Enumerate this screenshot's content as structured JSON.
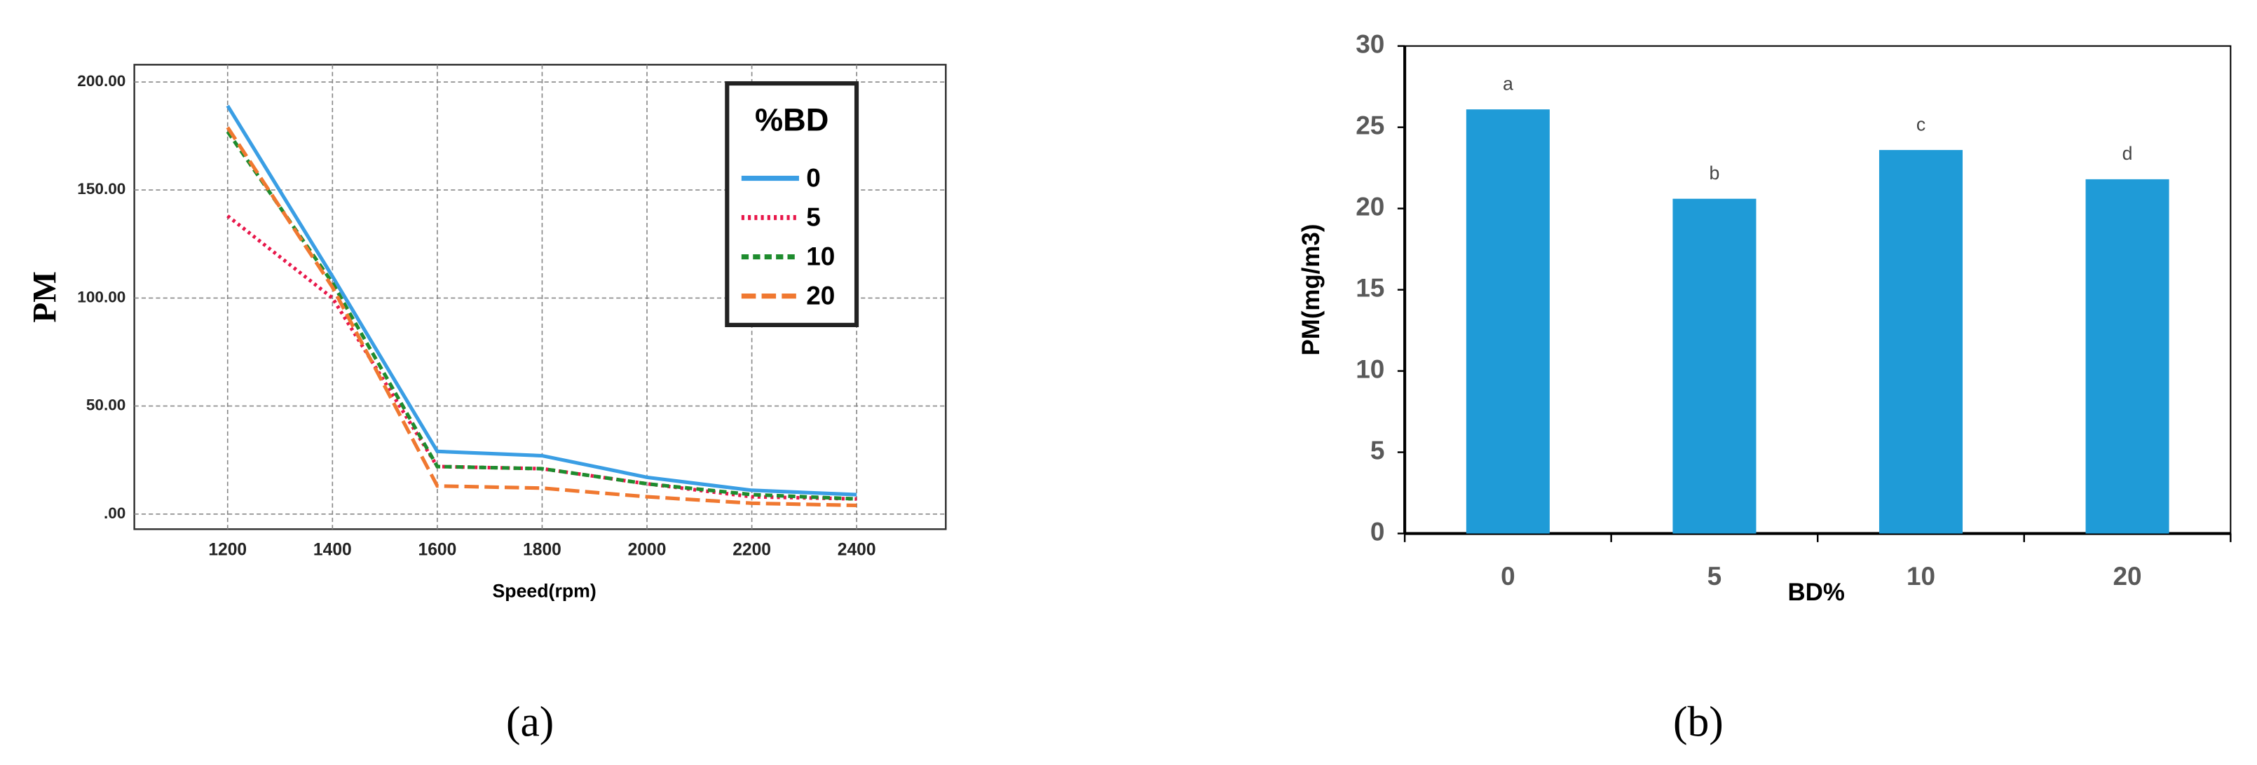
{
  "chart_data": [
    {
      "type": "line",
      "caption": "(a)",
      "y_label": "PM",
      "x_label": "Speed(rpm)",
      "x": [
        1200,
        1400,
        1600,
        1800,
        2000,
        2200,
        2400
      ],
      "xlim": [
        1022,
        2570
      ],
      "xticks": [
        1200,
        1400,
        1600,
        1800,
        2000,
        2200,
        2400
      ],
      "ylim": [
        -7,
        208
      ],
      "yticks": [
        {
          "value": 0,
          "label": ".00"
        },
        {
          "value": 50,
          "label": "50.00"
        },
        {
          "value": 100,
          "label": "100.00"
        },
        {
          "value": 150,
          "label": "150.00"
        },
        {
          "value": 200,
          "label": "200.00"
        }
      ],
      "grid": true,
      "legend_title": "%BD",
      "legend_position": "upper right",
      "series": [
        {
          "name": "0",
          "color": "#3a9ee4",
          "line_style": "solid",
          "values": [
            189,
            110,
            29,
            27,
            17,
            11,
            9
          ]
        },
        {
          "name": "5",
          "color": "#e8174a",
          "line_style": "dotted",
          "values": [
            138,
            100,
            22,
            21,
            14,
            8,
            7
          ]
        },
        {
          "name": "10",
          "color": "#1e8c2e",
          "line_style": "dashed",
          "values": [
            177,
            107,
            22,
            21,
            14,
            9,
            7
          ]
        },
        {
          "name": "20",
          "color": "#f07830",
          "line_style": "longdash",
          "values": [
            179,
            105,
            13,
            12,
            8,
            5,
            4
          ]
        }
      ]
    },
    {
      "type": "bar",
      "caption": "(b)",
      "y_label": "PM(mg/m3)",
      "x_label": "BD%",
      "categories": [
        "0",
        "5",
        "10",
        "20"
      ],
      "values": [
        26.1,
        20.6,
        23.6,
        21.8
      ],
      "annotations": [
        "a",
        "b",
        "c",
        "d"
      ],
      "color": "#1f9bd7",
      "ylim": [
        0,
        30
      ],
      "yticks": [
        0,
        5,
        10,
        15,
        20,
        25,
        30
      ],
      "grid": false
    }
  ]
}
